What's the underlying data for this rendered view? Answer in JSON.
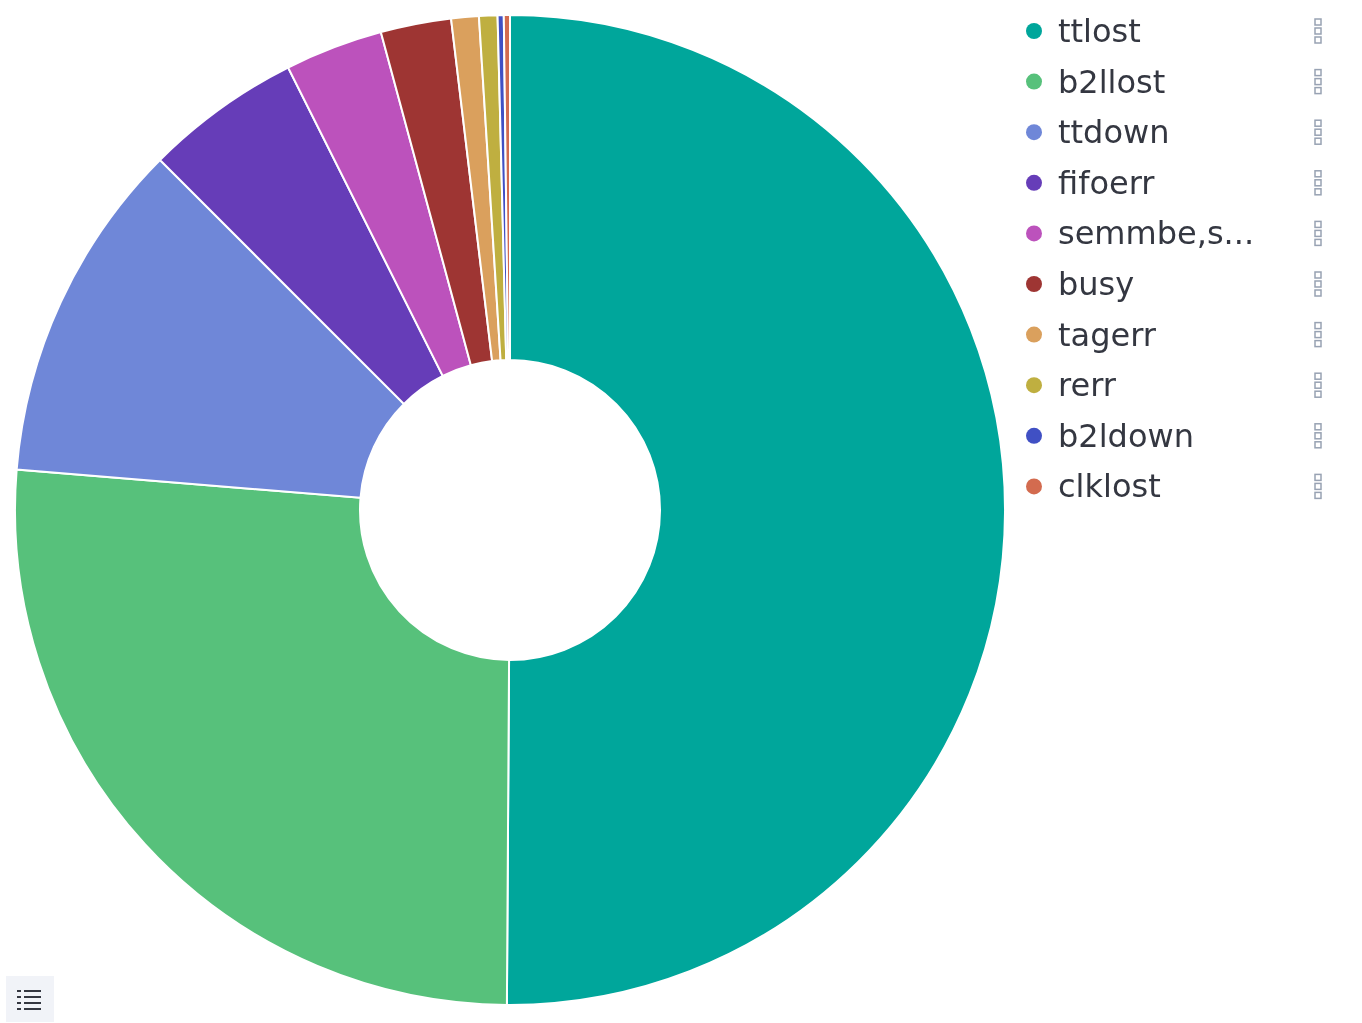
{
  "chart_data": {
    "type": "donut",
    "categories": [
      "ttlost",
      "b2llost",
      "ttdown",
      "fifoerr",
      "semmbe,s...",
      "busy",
      "tagerr",
      "rerr",
      "b2ldown",
      "clklost"
    ],
    "values": [
      50.1,
      26.2,
      11.2,
      5.1,
      3.2,
      2.3,
      0.9,
      0.6,
      0.2,
      0.2
    ],
    "colors": [
      "#00a69b",
      "#57c17b",
      "#6f87d8",
      "#663db8",
      "#bc52bc",
      "#9e3533",
      "#daa05d",
      "#bfaf40",
      "#4050c4",
      "#d36b4f"
    ],
    "legend": "top right"
  }
}
